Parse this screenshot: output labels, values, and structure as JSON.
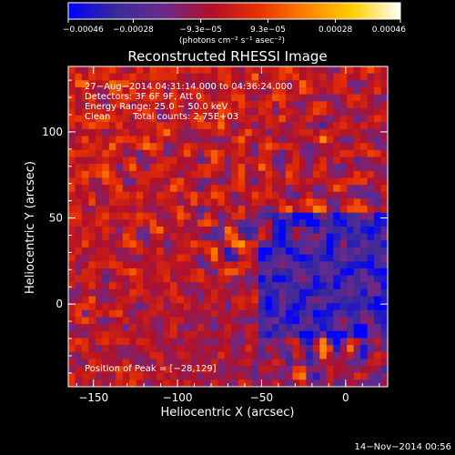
{
  "chart_data": {
    "type": "heatmap",
    "title": "Reconstructed RHESSI Image",
    "xlabel": "Heliocentric X (arcsec)",
    "ylabel": "Heliocentric Y (arcsec)",
    "xlim": [
      -165,
      25
    ],
    "ylim": [
      -48,
      138
    ],
    "x_ticks": [
      -150,
      -100,
      -50,
      0
    ],
    "y_ticks": [
      0,
      50,
      100
    ],
    "x_tick_labels": [
      "−150",
      "−100",
      "−50",
      "0"
    ],
    "y_tick_labels": [
      "0",
      "50",
      "100"
    ],
    "colormap": "RHESSI (blue→purple→red→orange→yellow→white)",
    "colorbar": {
      "range": [
        -0.00046,
        0.00046
      ],
      "ticks": [
        -0.00046,
        -0.00028,
        -9.3e-05,
        9.3e-05,
        0.00028,
        0.00046
      ],
      "tick_labels": [
        "−0.00046",
        "−0.00028",
        "−9.3e−05",
        "9.3e−05",
        "0.00028",
        "0.00046"
      ],
      "units": "(photons cm⁻² s⁻¹ asec⁻²)"
    },
    "annotations": {
      "time": "27−Aug−2014 04:31:14.000 to 04:36:24.000",
      "detectors": "Detectors: 3F 6F 9F, Att 0",
      "energy": "Energy Range: 25.0 − 50.0 keV",
      "method": "Clean",
      "counts": "Total counts: 2.75E+03",
      "peak": "Position of Peak = [−28,129]"
    },
    "peak_position": [
      -28,
      129
    ],
    "image_grid": {
      "nx": 47,
      "ny": 46,
      "pixel_arcsec": 4
    }
  },
  "footer": {
    "date": "14−Nov−2014 00:56"
  },
  "colors": {
    "background": "#000000",
    "text": "#ffffff",
    "cmap_stops": [
      "#0000ff",
      "#3a2a9a",
      "#6a2a8c",
      "#b0102a",
      "#e83000",
      "#ff8000",
      "#ffd000",
      "#ffffff"
    ]
  }
}
